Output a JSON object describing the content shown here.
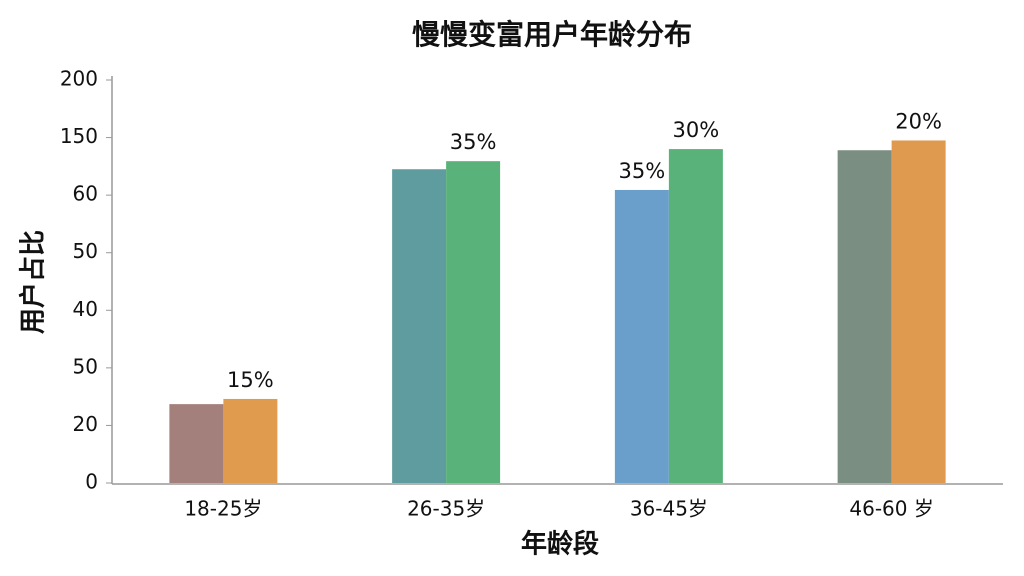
{
  "chart_data": {
    "type": "bar",
    "title": "慢慢变富用户年龄分布",
    "x_label": "年龄段",
    "y_label": "用户占比",
    "categories": [
      "18-25岁",
      "26-35岁",
      "36-45岁",
      "46-60 岁"
    ],
    "series": [
      {
        "colors": [
          "#a3807c",
          "#5f9c9f",
          "#6b9fcb",
          "#7b8e82"
        ],
        "values": [
          1.37,
          5.45,
          5.09,
          5.78
        ],
        "value_labels": [
          null,
          null,
          "35%",
          null
        ]
      },
      {
        "colors": [
          "#e09b4e",
          "#58b279",
          "#58b279",
          "#df9a4f"
        ],
        "values": [
          1.46,
          5.59,
          5.8,
          5.95
        ],
        "value_labels": [
          "15%",
          "35%",
          "30%",
          "20%"
        ]
      }
    ],
    "ylim": [
      0,
      7
    ],
    "yticks": [
      {
        "value": 0,
        "label": "0"
      },
      {
        "value": 1,
        "label": "20"
      },
      {
        "value": 2,
        "label": "50"
      },
      {
        "value": 3,
        "label": "40"
      },
      {
        "value": 4,
        "label": "50"
      },
      {
        "value": 5,
        "label": "60"
      },
      {
        "value": 6,
        "label": "150"
      },
      {
        "value": 7,
        "label": "200"
      }
    ]
  }
}
